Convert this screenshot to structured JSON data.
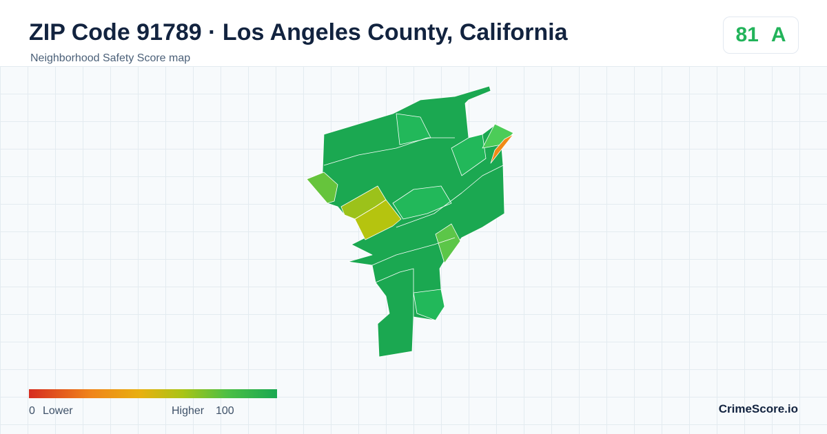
{
  "header": {
    "title": "ZIP Code 91789 · Los Angeles County, California",
    "subtitle": "Neighborhood Safety Score map"
  },
  "score": {
    "value": "81",
    "grade": "A"
  },
  "legend": {
    "min": "0",
    "min_label": "Lower",
    "max_label": "Higher",
    "max": "100"
  },
  "brand": "CrimeScore.io"
}
